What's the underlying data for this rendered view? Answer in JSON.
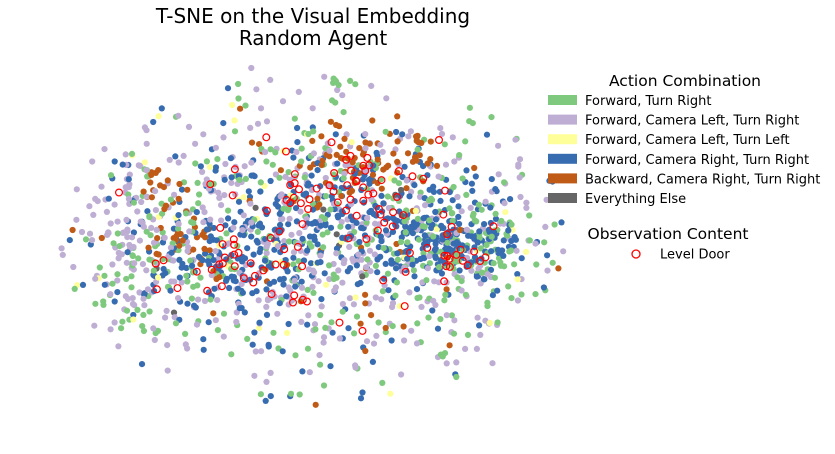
{
  "chart_data": {
    "type": "scatter",
    "title": "T-SNE on the Visual Embedding",
    "subtitle": "Random Agent",
    "xlabel": "",
    "ylabel": "",
    "xlim": [
      -100,
      100
    ],
    "ylim": [
      -100,
      100
    ],
    "grid": false,
    "axes_visible": false,
    "legend_placement": "right",
    "legend": {
      "title": "Action Combination",
      "entries": [
        {
          "label": "Forward, Turn Right",
          "color": "#7fc97f"
        },
        {
          "label": "Forward, Camera Left, Turn Right",
          "color": "#beaed4"
        },
        {
          "label": "Forward, Camera Left, Turn Left",
          "color": "#ffff99"
        },
        {
          "label": "Forward, Camera Right, Turn Right",
          "color": "#386cb0"
        },
        {
          "label": "Backward, Camera Right, Turn Right",
          "color": "#bf5b17"
        },
        {
          "label": "Everything Else",
          "color": "#666666"
        }
      ]
    },
    "overlay_legend": {
      "title": "Observation Content",
      "entries": [
        {
          "label": "Level Door",
          "edgecolor": "#ff0000",
          "facecolor": "none"
        }
      ]
    },
    "series": [
      {
        "name": "Forward, Turn Right",
        "color": "#7fc97f",
        "clusters": [
          {
            "cx": 10,
            "cy": 2,
            "sx": 48,
            "sy": 38,
            "n": 280
          },
          {
            "cx": 58,
            "cy": -8,
            "sx": 12,
            "sy": 10,
            "n": 70
          },
          {
            "cx": -66,
            "cy": -20,
            "sx": 12,
            "sy": 22,
            "n": 55
          },
          {
            "cx": 5,
            "cy": 88,
            "sx": 4,
            "sy": 2,
            "n": 8
          }
        ]
      },
      {
        "name": "Forward, Camera Left, Turn Right",
        "color": "#beaed4",
        "clusters": [
          {
            "cx": 0,
            "cy": 0,
            "sx": 55,
            "sy": 42,
            "n": 420
          },
          {
            "cx": -70,
            "cy": 10,
            "sx": 12,
            "sy": 26,
            "n": 70
          }
        ]
      },
      {
        "name": "Forward, Camera Left, Turn Left",
        "color": "#ffff99",
        "clusters": [
          {
            "cx": -20,
            "cy": 0,
            "sx": 55,
            "sy": 40,
            "n": 45
          }
        ]
      },
      {
        "name": "Forward, Camera Right, Turn Right",
        "color": "#386cb0",
        "clusters": [
          {
            "cx": -30,
            "cy": -12,
            "sx": 18,
            "sy": 16,
            "n": 130
          },
          {
            "cx": 50,
            "cy": -2,
            "sx": 15,
            "sy": 12,
            "n": 150
          },
          {
            "cx": 15,
            "cy": 15,
            "sx": 26,
            "sy": 18,
            "n": 160
          },
          {
            "cx": 0,
            "cy": -5,
            "sx": 55,
            "sy": 40,
            "n": 180
          }
        ]
      },
      {
        "name": "Backward, Camera Right, Turn Right",
        "color": "#bf5b17",
        "clusters": [
          {
            "cx": 20,
            "cy": 45,
            "sx": 14,
            "sy": 12,
            "n": 70
          },
          {
            "cx": -48,
            "cy": -5,
            "sx": 6,
            "sy": 9,
            "n": 22
          },
          {
            "cx": -62,
            "cy": 30,
            "sx": 5,
            "sy": 8,
            "n": 18
          },
          {
            "cx": 0,
            "cy": 0,
            "sx": 48,
            "sy": 38,
            "n": 50
          }
        ]
      },
      {
        "name": "Everything Else",
        "color": "#666666",
        "clusters": [
          {
            "cx": 0,
            "cy": 0,
            "sx": 50,
            "sy": 38,
            "n": 14
          }
        ]
      },
      {
        "name": "Level Door",
        "color": "#ff0000",
        "overlay": true,
        "clusters": [
          {
            "cx": 10,
            "cy": 28,
            "sx": 15,
            "sy": 13,
            "n": 40
          },
          {
            "cx": -30,
            "cy": -12,
            "sx": 17,
            "sy": 13,
            "n": 30
          },
          {
            "cx": 55,
            "cy": -10,
            "sx": 8,
            "sy": 10,
            "n": 18
          },
          {
            "cx": 5,
            "cy": 0,
            "sx": 40,
            "sy": 30,
            "n": 28
          }
        ]
      }
    ]
  }
}
